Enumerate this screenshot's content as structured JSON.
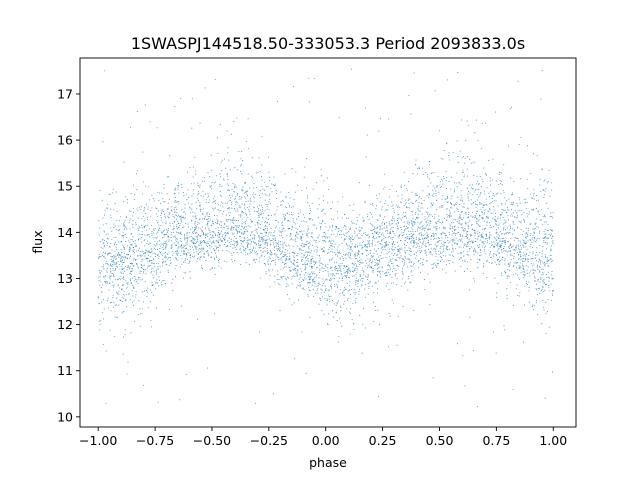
{
  "chart_data": {
    "type": "scatter",
    "title": "1SWASPJ144518.50-333053.3 Period 2093833.0s",
    "xlabel": "phase",
    "ylabel": "flux",
    "xlim": [
      -1.08,
      1.1
    ],
    "ylim": [
      9.78,
      17.78
    ],
    "xticks": [
      -1.0,
      -0.75,
      -0.5,
      -0.25,
      0.0,
      0.25,
      0.5,
      0.75,
      1.0
    ],
    "xtick_labels": [
      "−1.00",
      "−0.75",
      "−0.50",
      "−0.25",
      "0.00",
      "0.25",
      "0.50",
      "0.75",
      "1.00"
    ],
    "yticks": [
      10,
      11,
      12,
      13,
      14,
      15,
      16,
      17
    ],
    "ytick_labels": [
      "10",
      "11",
      "12",
      "13",
      "14",
      "15",
      "16",
      "17"
    ],
    "grid": false,
    "point_color": "#1f77b4",
    "series": [
      {
        "profile": {
          "phase": [
            -1.0,
            -0.95,
            -0.9,
            -0.85,
            -0.8,
            -0.75,
            -0.7,
            -0.65,
            -0.6,
            -0.55,
            -0.5,
            -0.45,
            -0.4,
            -0.35,
            -0.3,
            -0.25,
            -0.2,
            -0.15,
            -0.1,
            -0.05,
            0.0,
            0.05,
            0.1,
            0.15,
            0.2,
            0.25,
            0.3,
            0.35,
            0.4,
            0.45,
            0.5,
            0.55,
            0.6,
            0.65,
            0.7,
            0.75,
            0.8,
            0.85,
            0.9,
            0.95,
            1.0
          ],
          "median_flux": [
            13.4,
            13.3,
            13.4,
            13.5,
            13.5,
            13.6,
            13.8,
            13.9,
            13.9,
            14.0,
            14.0,
            14.1,
            14.2,
            14.1,
            14.0,
            13.9,
            13.7,
            13.6,
            13.5,
            13.4,
            13.3,
            13.3,
            13.4,
            13.5,
            13.6,
            13.7,
            13.8,
            13.9,
            14.0,
            14.0,
            14.0,
            14.1,
            14.1,
            14.1,
            14.0,
            13.9,
            13.8,
            13.7,
            13.6,
            13.5,
            13.4
          ],
          "upper_flux": [
            15.0,
            14.8,
            14.7,
            14.9,
            15.1,
            15.0,
            15.2,
            15.3,
            15.3,
            15.5,
            15.6,
            16.1,
            15.9,
            15.8,
            15.6,
            15.4,
            15.1,
            15.0,
            14.9,
            14.8,
            15.6,
            14.8,
            14.7,
            14.7,
            14.8,
            14.9,
            15.0,
            15.2,
            15.3,
            15.4,
            15.5,
            16.0,
            15.9,
            15.8,
            15.7,
            15.6,
            15.4,
            15.2,
            15.1,
            15.6,
            14.9
          ],
          "lower_flux": [
            12.0,
            11.9,
            12.2,
            12.1,
            12.2,
            12.4,
            12.8,
            13.0,
            13.1,
            13.2,
            13.2,
            13.3,
            13.4,
            13.3,
            13.2,
            13.0,
            12.8,
            12.6,
            12.5,
            12.3,
            12.0,
            11.9,
            12.0,
            12.2,
            12.3,
            12.5,
            12.7,
            12.9,
            13.0,
            13.1,
            13.1,
            13.2,
            13.2,
            13.2,
            13.1,
            12.9,
            12.8,
            12.6,
            12.4,
            12.2,
            12.0
          ]
        }
      }
    ]
  }
}
